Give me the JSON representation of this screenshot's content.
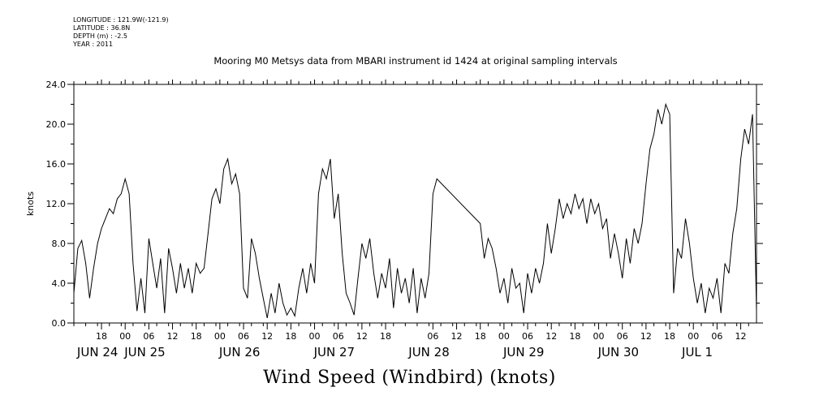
{
  "meta": {
    "longitude": "LONGITUDE : 121.9W(-121.9)",
    "latitude": "LATITUDE : 36.8N",
    "depth": "DEPTH (m) : -2.5",
    "year": "YEAR : 2011"
  },
  "chart_data": {
    "type": "line",
    "title": "Mooring M0 Metsys data from MBARI instrument id 1424 at original sampling intervals",
    "bottom_title": "Wind Speed (Windbird) (knots)",
    "ylabel": "knots",
    "xlabel": "",
    "ylim": [
      0,
      24
    ],
    "y_ticks": [
      "0.0",
      "4.0",
      "8.0",
      "12.0",
      "16.0",
      "20.0",
      "24.0"
    ],
    "x_range": [
      "2011-06-24T11:00",
      "2011-07-01T16:00"
    ],
    "x_hour_ticks": [
      {
        "t": "2011-06-24T18:00",
        "label": "18"
      },
      {
        "t": "2011-06-25T00:00",
        "label": "00"
      },
      {
        "t": "2011-06-25T06:00",
        "label": "06"
      },
      {
        "t": "2011-06-25T12:00",
        "label": "12"
      },
      {
        "t": "2011-06-25T18:00",
        "label": "18"
      },
      {
        "t": "2011-06-26T00:00",
        "label": "00"
      },
      {
        "t": "2011-06-26T06:00",
        "label": "06"
      },
      {
        "t": "2011-06-26T12:00",
        "label": "12"
      },
      {
        "t": "2011-06-26T18:00",
        "label": "18"
      },
      {
        "t": "2011-06-27T00:00",
        "label": "00"
      },
      {
        "t": "2011-06-27T06:00",
        "label": "06"
      },
      {
        "t": "2011-06-27T12:00",
        "label": "12"
      },
      {
        "t": "2011-06-27T18:00",
        "label": "18"
      },
      {
        "t": "2011-06-28T06:00",
        "label": "06"
      },
      {
        "t": "2011-06-28T12:00",
        "label": "12"
      },
      {
        "t": "2011-06-28T18:00",
        "label": "18"
      },
      {
        "t": "2011-06-29T00:00",
        "label": "00"
      },
      {
        "t": "2011-06-29T06:00",
        "label": "06"
      },
      {
        "t": "2011-06-29T12:00",
        "label": "12"
      },
      {
        "t": "2011-06-29T18:00",
        "label": "18"
      },
      {
        "t": "2011-06-30T00:00",
        "label": "00"
      },
      {
        "t": "2011-06-30T06:00",
        "label": "06"
      },
      {
        "t": "2011-06-30T12:00",
        "label": "12"
      },
      {
        "t": "2011-06-30T18:00",
        "label": "18"
      },
      {
        "t": "2011-07-01T00:00",
        "label": "00"
      },
      {
        "t": "2011-07-01T06:00",
        "label": "06"
      },
      {
        "t": "2011-07-01T12:00",
        "label": "12"
      }
    ],
    "x_date_labels": [
      {
        "t": "2011-06-24T17:00",
        "label": "JUN 24"
      },
      {
        "t": "2011-06-25T05:00",
        "label": "JUN 25"
      },
      {
        "t": "2011-06-26T05:00",
        "label": "JUN 26"
      },
      {
        "t": "2011-06-27T05:00",
        "label": "JUN 27"
      },
      {
        "t": "2011-06-28T05:00",
        "label": "JUN 28"
      },
      {
        "t": "2011-06-29T05:00",
        "label": "JUN 29"
      },
      {
        "t": "2011-06-30T05:00",
        "label": "JUN 30"
      },
      {
        "t": "2011-07-01T01:00",
        "label": "JUL  1"
      }
    ],
    "series": [
      {
        "color": "#000000",
        "points": [
          [
            "2011-06-24T11:00",
            3.0
          ],
          [
            "2011-06-24T12:00",
            7.5
          ],
          [
            "2011-06-24T13:00",
            8.3
          ],
          [
            "2011-06-24T14:00",
            6.0
          ],
          [
            "2011-06-24T15:00",
            2.5
          ],
          [
            "2011-06-24T16:00",
            5.5
          ],
          [
            "2011-06-24T17:00",
            8.0
          ],
          [
            "2011-06-24T18:00",
            9.5
          ],
          [
            "2011-06-24T19:00",
            10.5
          ],
          [
            "2011-06-24T20:00",
            11.5
          ],
          [
            "2011-06-24T21:00",
            11.0
          ],
          [
            "2011-06-24T22:00",
            12.5
          ],
          [
            "2011-06-24T23:00",
            13.0
          ],
          [
            "2011-06-25T00:00",
            14.5
          ],
          [
            "2011-06-25T01:00",
            13.0
          ],
          [
            "2011-06-25T02:00",
            6.0
          ],
          [
            "2011-06-25T03:00",
            1.2
          ],
          [
            "2011-06-25T04:00",
            4.5
          ],
          [
            "2011-06-25T05:00",
            1.0
          ],
          [
            "2011-06-25T06:00",
            8.5
          ],
          [
            "2011-06-25T07:00",
            6.0
          ],
          [
            "2011-06-25T08:00",
            3.5
          ],
          [
            "2011-06-25T09:00",
            6.5
          ],
          [
            "2011-06-25T10:00",
            1.0
          ],
          [
            "2011-06-25T11:00",
            7.5
          ],
          [
            "2011-06-25T12:00",
            5.5
          ],
          [
            "2011-06-25T13:00",
            3.0
          ],
          [
            "2011-06-25T14:00",
            6.0
          ],
          [
            "2011-06-25T15:00",
            3.5
          ],
          [
            "2011-06-25T16:00",
            5.5
          ],
          [
            "2011-06-25T17:00",
            3.0
          ],
          [
            "2011-06-25T18:00",
            6.0
          ],
          [
            "2011-06-25T19:00",
            5.0
          ],
          [
            "2011-06-25T20:00",
            5.5
          ],
          [
            "2011-06-25T21:00",
            9.0
          ],
          [
            "2011-06-25T22:00",
            12.5
          ],
          [
            "2011-06-25T23:00",
            13.5
          ],
          [
            "2011-06-26T00:00",
            12.0
          ],
          [
            "2011-06-26T01:00",
            15.5
          ],
          [
            "2011-06-26T02:00",
            16.5
          ],
          [
            "2011-06-26T03:00",
            14.0
          ],
          [
            "2011-06-26T04:00",
            15.0
          ],
          [
            "2011-06-26T05:00",
            13.0
          ],
          [
            "2011-06-26T06:00",
            3.5
          ],
          [
            "2011-06-26T07:00",
            2.5
          ],
          [
            "2011-06-26T08:00",
            8.5
          ],
          [
            "2011-06-26T09:00",
            7.0
          ],
          [
            "2011-06-26T10:00",
            4.5
          ],
          [
            "2011-06-26T11:00",
            2.5
          ],
          [
            "2011-06-26T12:00",
            0.5
          ],
          [
            "2011-06-26T13:00",
            3.0
          ],
          [
            "2011-06-26T14:00",
            1.0
          ],
          [
            "2011-06-26T15:00",
            4.0
          ],
          [
            "2011-06-26T16:00",
            2.0
          ],
          [
            "2011-06-26T17:00",
            0.8
          ],
          [
            "2011-06-26T18:00",
            1.5
          ],
          [
            "2011-06-26T19:00",
            0.7
          ],
          [
            "2011-06-26T20:00",
            3.5
          ],
          [
            "2011-06-26T21:00",
            5.5
          ],
          [
            "2011-06-26T22:00",
            3.0
          ],
          [
            "2011-06-26T23:00",
            6.0
          ],
          [
            "2011-06-27T00:00",
            4.0
          ],
          [
            "2011-06-27T01:00",
            13.0
          ],
          [
            "2011-06-27T02:00",
            15.5
          ],
          [
            "2011-06-27T03:00",
            14.5
          ],
          [
            "2011-06-27T04:00",
            16.5
          ],
          [
            "2011-06-27T05:00",
            10.5
          ],
          [
            "2011-06-27T06:00",
            13.0
          ],
          [
            "2011-06-27T07:00",
            7.0
          ],
          [
            "2011-06-27T08:00",
            3.0
          ],
          [
            "2011-06-27T09:00",
            2.0
          ],
          [
            "2011-06-27T10:00",
            0.8
          ],
          [
            "2011-06-27T11:00",
            4.5
          ],
          [
            "2011-06-27T12:00",
            8.0
          ],
          [
            "2011-06-27T13:00",
            6.5
          ],
          [
            "2011-06-27T14:00",
            8.5
          ],
          [
            "2011-06-27T15:00",
            5.0
          ],
          [
            "2011-06-27T16:00",
            2.5
          ],
          [
            "2011-06-27T17:00",
            5.0
          ],
          [
            "2011-06-27T18:00",
            3.5
          ],
          [
            "2011-06-27T19:00",
            6.5
          ],
          [
            "2011-06-27T20:00",
            1.5
          ],
          [
            "2011-06-27T21:00",
            5.5
          ],
          [
            "2011-06-27T22:00",
            3.0
          ],
          [
            "2011-06-27T23:00",
            4.5
          ],
          [
            "2011-06-28T00:00",
            2.0
          ],
          [
            "2011-06-28T01:00",
            5.5
          ],
          [
            "2011-06-28T02:00",
            1.0
          ],
          [
            "2011-06-28T03:00",
            4.5
          ],
          [
            "2011-06-28T04:00",
            2.5
          ],
          [
            "2011-06-28T05:00",
            5.0
          ],
          [
            "2011-06-28T06:00",
            13.0
          ],
          [
            "2011-06-28T07:00",
            14.5
          ],
          [
            "2011-06-28T18:00",
            10.0
          ],
          [
            "2011-06-28T19:00",
            6.5
          ],
          [
            "2011-06-28T20:00",
            8.5
          ],
          [
            "2011-06-28T21:00",
            7.5
          ],
          [
            "2011-06-28T22:00",
            5.5
          ],
          [
            "2011-06-28T23:00",
            3.0
          ],
          [
            "2011-06-29T00:00",
            4.5
          ],
          [
            "2011-06-29T01:00",
            2.0
          ],
          [
            "2011-06-29T02:00",
            5.5
          ],
          [
            "2011-06-29T03:00",
            3.5
          ],
          [
            "2011-06-29T04:00",
            4.0
          ],
          [
            "2011-06-29T05:00",
            1.0
          ],
          [
            "2011-06-29T06:00",
            5.0
          ],
          [
            "2011-06-29T07:00",
            3.0
          ],
          [
            "2011-06-29T08:00",
            5.5
          ],
          [
            "2011-06-29T09:00",
            4.0
          ],
          [
            "2011-06-29T10:00",
            6.0
          ],
          [
            "2011-06-29T11:00",
            10.0
          ],
          [
            "2011-06-29T12:00",
            7.0
          ],
          [
            "2011-06-29T13:00",
            9.5
          ],
          [
            "2011-06-29T14:00",
            12.5
          ],
          [
            "2011-06-29T15:00",
            10.5
          ],
          [
            "2011-06-29T16:00",
            12.0
          ],
          [
            "2011-06-29T17:00",
            11.0
          ],
          [
            "2011-06-29T18:00",
            13.0
          ],
          [
            "2011-06-29T19:00",
            11.5
          ],
          [
            "2011-06-29T20:00",
            12.5
          ],
          [
            "2011-06-29T21:00",
            10.0
          ],
          [
            "2011-06-29T22:00",
            12.5
          ],
          [
            "2011-06-29T23:00",
            11.0
          ],
          [
            "2011-06-30T00:00",
            12.0
          ],
          [
            "2011-06-30T01:00",
            9.5
          ],
          [
            "2011-06-30T02:00",
            10.5
          ],
          [
            "2011-06-30T03:00",
            6.5
          ],
          [
            "2011-06-30T04:00",
            9.0
          ],
          [
            "2011-06-30T05:00",
            7.0
          ],
          [
            "2011-06-30T06:00",
            4.5
          ],
          [
            "2011-06-30T07:00",
            8.5
          ],
          [
            "2011-06-30T08:00",
            6.0
          ],
          [
            "2011-06-30T09:00",
            9.5
          ],
          [
            "2011-06-30T10:00",
            8.0
          ],
          [
            "2011-06-30T11:00",
            10.0
          ],
          [
            "2011-06-30T12:00",
            14.0
          ],
          [
            "2011-06-30T13:00",
            17.5
          ],
          [
            "2011-06-30T14:00",
            19.0
          ],
          [
            "2011-06-30T15:00",
            21.5
          ],
          [
            "2011-06-30T16:00",
            20.0
          ],
          [
            "2011-06-30T17:00",
            22.0
          ],
          [
            "2011-06-30T18:00",
            21.0
          ],
          [
            "2011-06-30T19:00",
            3.0
          ],
          [
            "2011-06-30T20:00",
            7.5
          ],
          [
            "2011-06-30T21:00",
            6.5
          ],
          [
            "2011-06-30T22:00",
            10.5
          ],
          [
            "2011-06-30T23:00",
            8.0
          ],
          [
            "2011-07-01T00:00",
            4.5
          ],
          [
            "2011-07-01T01:00",
            2.0
          ],
          [
            "2011-07-01T02:00",
            4.0
          ],
          [
            "2011-07-01T03:00",
            1.0
          ],
          [
            "2011-07-01T04:00",
            3.5
          ],
          [
            "2011-07-01T05:00",
            2.5
          ],
          [
            "2011-07-01T06:00",
            4.5
          ],
          [
            "2011-07-01T07:00",
            1.0
          ],
          [
            "2011-07-01T08:00",
            6.0
          ],
          [
            "2011-07-01T09:00",
            5.0
          ],
          [
            "2011-07-01T10:00",
            9.0
          ],
          [
            "2011-07-01T11:00",
            11.5
          ],
          [
            "2011-07-01T12:00",
            16.5
          ],
          [
            "2011-07-01T13:00",
            19.5
          ],
          [
            "2011-07-01T14:00",
            18.0
          ],
          [
            "2011-07-01T15:00",
            21.0
          ],
          [
            "2011-07-01T16:00",
            1.2
          ]
        ]
      }
    ]
  }
}
